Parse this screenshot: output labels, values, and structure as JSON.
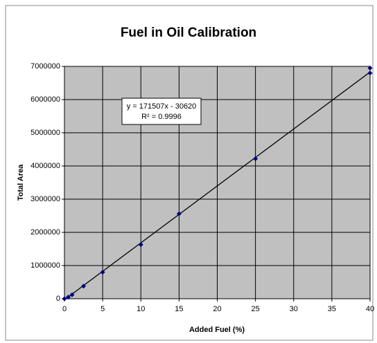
{
  "chart_data": {
    "type": "scatter",
    "title": "Fuel in Oil Calibration",
    "x_label": "Added Fuel (%)",
    "y_label": "Total Area",
    "x": [
      0,
      0.5,
      1,
      2.5,
      5,
      10,
      15,
      25,
      40,
      40
    ],
    "values": [
      0,
      50000,
      120000,
      380000,
      800000,
      1630000,
      2560000,
      4220000,
      6800000,
      6950000
    ],
    "color": "#000080",
    "xlim": [
      0,
      40
    ],
    "xticks": [
      0,
      5,
      10,
      15,
      20,
      25,
      30,
      35,
      40
    ],
    "ylim": [
      0,
      7000000
    ],
    "yticks": [
      0,
      1000000,
      2000000,
      3000000,
      4000000,
      5000000,
      6000000,
      7000000
    ],
    "grid": true,
    "trendline": {
      "slope": 171507,
      "intercept": -30620,
      "equation": "y = 171507x - 30620",
      "r2": "R² = 0.9996"
    }
  }
}
